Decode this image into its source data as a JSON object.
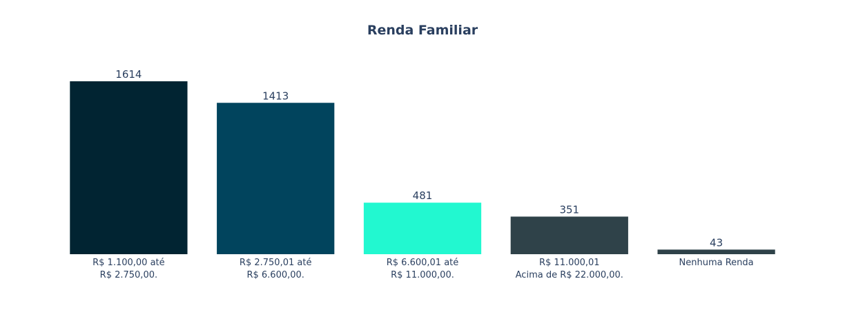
{
  "chart_data": {
    "type": "bar",
    "title": "Renda Familiar",
    "xlabel": "",
    "ylabel": "",
    "categories": [
      [
        "R$ 1.100,00 até",
        "R$ 2.750,00."
      ],
      [
        "R$ 2.750,01 até",
        "R$ 6.600,00."
      ],
      [
        "R$ 6.600,01 até",
        "R$ 11.000,00."
      ],
      [
        "R$ 11.000,01",
        "Acima de R$ 22.000,00."
      ],
      [
        "Nenhuma Renda"
      ]
    ],
    "values": [
      1614,
      1413,
      481,
      351,
      43
    ],
    "colors": [
      "#012432",
      "#01445d",
      "#22f8d0",
      "#2f4249",
      "#2f4249"
    ],
    "ylim": [
      0,
      1614
    ],
    "grid": false,
    "show_data_labels": true
  }
}
